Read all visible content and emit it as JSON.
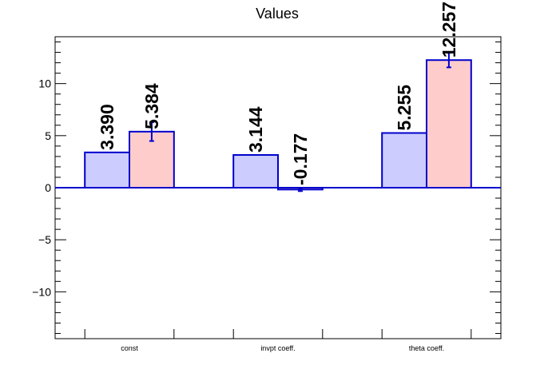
{
  "chart_data": {
    "type": "bar",
    "title": "Values",
    "categories": [
      "const",
      "invpt coeff.",
      "theta coeff."
    ],
    "series": [
      {
        "values": [
          3.39,
          3.144,
          5.255
        ],
        "labels": [
          "3.390",
          "3.144",
          "5.255"
        ],
        "fill": "#ccccff",
        "stroke": "#0000cc"
      },
      {
        "values": [
          5.384,
          -0.177,
          12.257
        ],
        "labels": [
          "5.384",
          "-0.177",
          "12.257"
        ],
        "errors": [
          0.9,
          0.15,
          0.7
        ],
        "fill": "#ffcccc",
        "stroke": "#0000cc"
      }
    ],
    "ylim": [
      -14.5,
      14.5
    ],
    "yticks": [
      -10,
      -5,
      0,
      5,
      10
    ],
    "ytick_labels": [
      "−10",
      "−5",
      "0",
      "5",
      "10"
    ],
    "grid": false,
    "zero_line_color": "#0000cc"
  }
}
